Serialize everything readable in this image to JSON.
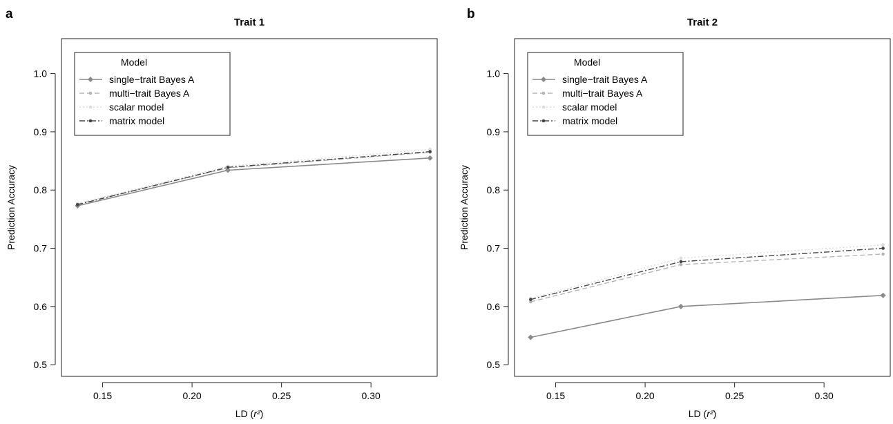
{
  "figure": {
    "panel_labels": [
      "a",
      "b"
    ]
  },
  "styles": {
    "series": [
      {
        "color": "#8a8a8a",
        "dash": "",
        "marker": "diamond",
        "width": 1.6
      },
      {
        "color": "#b4b4b4",
        "dash": "7,4",
        "marker": "circle",
        "width": 1.4
      },
      {
        "color": "#dcdcdc",
        "dash": "2,3",
        "marker": "circle",
        "width": 1.4
      },
      {
        "color": "#444444",
        "dash": "8,3,2,3",
        "marker": "circle",
        "width": 1.4
      }
    ]
  },
  "chart_data": [
    {
      "type": "line",
      "panel": "a",
      "title": "Trait 1",
      "xlabel": "LD (r²)",
      "ylabel": "Prediction Accuracy",
      "xlim": [
        0.127,
        0.337
      ],
      "ylim": [
        0.48,
        1.06
      ],
      "xticks": [
        "0.15",
        "0.20",
        "0.25",
        "0.30"
      ],
      "xtick_values": [
        0.15,
        0.2,
        0.25,
        0.3
      ],
      "yticks": [
        "0.5",
        "0.6",
        "0.7",
        "0.8",
        "0.9",
        "1.0"
      ],
      "ytick_values": [
        0.5,
        0.6,
        0.7,
        0.8,
        0.9,
        1.0
      ],
      "grid": false,
      "legend": {
        "title": "Model",
        "position": "top-left"
      },
      "x": [
        0.136,
        0.22,
        0.333
      ],
      "series": [
        {
          "name": "single−trait Bayes A",
          "values": [
            0.773,
            0.834,
            0.855
          ]
        },
        {
          "name": "multi−trait Bayes A",
          "values": [
            0.776,
            0.838,
            0.865
          ]
        },
        {
          "name": "scalar model",
          "values": [
            0.777,
            0.841,
            0.87
          ]
        },
        {
          "name": "matrix model",
          "values": [
            0.775,
            0.839,
            0.866
          ]
        }
      ]
    },
    {
      "type": "line",
      "panel": "b",
      "title": "Trait 2",
      "xlabel": "LD (r²)",
      "ylabel": "Prediction Accuracy",
      "xlim": [
        0.127,
        0.337
      ],
      "ylim": [
        0.48,
        1.06
      ],
      "xticks": [
        "0.15",
        "0.20",
        "0.25",
        "0.30"
      ],
      "xtick_values": [
        0.15,
        0.2,
        0.25,
        0.3
      ],
      "yticks": [
        "0.5",
        "0.6",
        "0.7",
        "0.8",
        "0.9",
        "1.0"
      ],
      "ytick_values": [
        0.5,
        0.6,
        0.7,
        0.8,
        0.9,
        1.0
      ],
      "grid": false,
      "legend": {
        "title": "Model",
        "position": "top-left"
      },
      "x": [
        0.136,
        0.22,
        0.333
      ],
      "series": [
        {
          "name": "single−trait Bayes A",
          "values": [
            0.547,
            0.6,
            0.619
          ]
        },
        {
          "name": "multi−trait Bayes A",
          "values": [
            0.608,
            0.672,
            0.69
          ]
        },
        {
          "name": "scalar model",
          "values": [
            0.614,
            0.683,
            0.706
          ]
        },
        {
          "name": "matrix model",
          "values": [
            0.612,
            0.677,
            0.7
          ]
        }
      ]
    }
  ]
}
